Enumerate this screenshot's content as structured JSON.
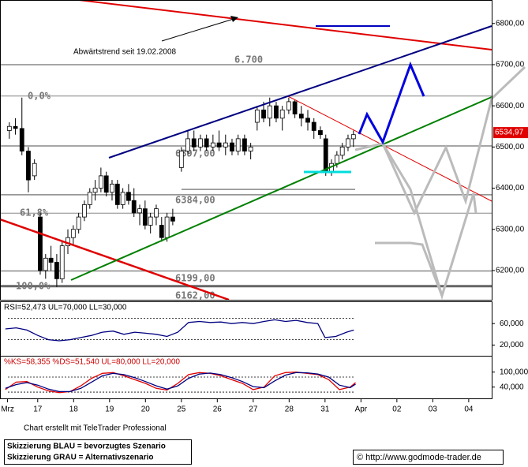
{
  "chart_data": [
    {
      "type": "candlestick",
      "annotation": "Abwärtstrend seit 19.02.2008",
      "xlim": [
        -1.05,
        12.64
      ],
      "xticks": [
        {
          "value": -0.84,
          "label": "Mrz"
        },
        {
          "value": 0,
          "label": "17"
        },
        {
          "value": 1,
          "label": "18"
        },
        {
          "value": 2,
          "label": "19"
        },
        {
          "value": 3,
          "label": "20"
        },
        {
          "value": 4,
          "label": "25"
        },
        {
          "value": 5,
          "label": "26"
        },
        {
          "value": 6,
          "label": "27"
        },
        {
          "value": 7,
          "label": "28"
        },
        {
          "value": 8,
          "label": "31"
        },
        {
          "value": 9,
          "label": "Apr"
        },
        {
          "value": 10,
          "label": "02"
        },
        {
          "value": 11,
          "label": "03"
        },
        {
          "value": 12,
          "label": "04"
        }
      ],
      "ylim": [
        6129,
        6857
      ],
      "yticks": [
        {
          "value": 6800,
          "label": "6800,00"
        },
        {
          "value": 6700,
          "label": "6700,00"
        },
        {
          "value": 6600,
          "label": "6600,00"
        },
        {
          "value": 6500,
          "label": "6500,00"
        },
        {
          "value": 6400,
          "label": "6400,00"
        },
        {
          "value": 6300,
          "label": "6300,00"
        },
        {
          "value": 6200,
          "label": "6200,00"
        }
      ],
      "last_price": {
        "value": 6534.97,
        "label": "6534,97"
      },
      "levels": [
        {
          "value": 6700,
          "label": "6.700"
        },
        {
          "value": 6624,
          "label": "0,0%"
        },
        {
          "value": 6397,
          "label": "6397,00"
        },
        {
          "value": 6384,
          "label": "6384,00"
        },
        {
          "value": 6339,
          "label": "61,8%"
        },
        {
          "value": 6199,
          "label": "6199,00"
        },
        {
          "value": 6162,
          "label": "6162,00"
        },
        {
          "value": 6158,
          "label": "100,0%"
        }
      ],
      "x": [
        -0.79,
        -0.62,
        -0.44,
        -0.26,
        -0.09,
        0.07,
        0.22,
        0.37,
        0.53,
        0.68,
        0.84,
        0.99,
        1.14,
        1.3,
        1.45,
        1.6,
        1.76,
        1.91,
        2.07,
        2.22,
        2.37,
        2.53,
        2.68,
        2.84,
        2.99,
        3.14,
        3.3,
        3.45,
        3.6,
        3.76,
        4.0,
        4.18,
        4.35,
        4.53,
        4.7,
        4.88,
        5.05,
        5.23,
        5.41,
        5.58,
        5.76,
        5.93,
        6.11,
        6.29,
        6.46,
        6.64,
        6.81,
        6.99,
        7.16,
        7.34,
        7.52,
        7.69,
        7.87,
        8.02,
        8.18,
        8.33,
        8.48,
        8.64,
        8.79
      ],
      "open": [
        6540,
        6550,
        6545,
        6490,
        6430,
        6330,
        6200,
        6230,
        6220,
        6180,
        6260,
        6280,
        6300,
        6330,
        6360,
        6390,
        6400,
        6430,
        6390,
        6410,
        6360,
        6390,
        6370,
        6340,
        6350,
        6310,
        6330,
        6310,
        6280,
        6330,
        6450,
        6490,
        6520,
        6500,
        6520,
        6500,
        6510,
        6500,
        6510,
        6490,
        6520,
        6490,
        6560,
        6590,
        6570,
        6600,
        6570,
        6590,
        6610,
        6580,
        6570,
        6560,
        6540,
        6520,
        6440,
        6460,
        6480,
        6500,
        6520
      ],
      "high": [
        6560,
        6570,
        6620,
        6500,
        6470,
        6340,
        6240,
        6260,
        6240,
        6270,
        6300,
        6310,
        6340,
        6370,
        6400,
        6420,
        6450,
        6440,
        6420,
        6420,
        6400,
        6410,
        6400,
        6360,
        6370,
        6340,
        6360,
        6330,
        6340,
        6350,
        6500,
        6540,
        6540,
        6530,
        6530,
        6530,
        6540,
        6530,
        6520,
        6530,
        6530,
        6510,
        6600,
        6610,
        6620,
        6610,
        6600,
        6620,
        6615,
        6600,
        6590,
        6570,
        6550,
        6530,
        6470,
        6490,
        6510,
        6530,
        6540
      ],
      "low": [
        6520,
        6530,
        6480,
        6390,
        6420,
        6190,
        6180,
        6200,
        6160,
        6170,
        6240,
        6260,
        6290,
        6320,
        6350,
        6370,
        6390,
        6380,
        6370,
        6350,
        6350,
        6360,
        6330,
        6310,
        6300,
        6290,
        6310,
        6270,
        6270,
        6310,
        6440,
        6480,
        6490,
        6490,
        6490,
        6490,
        6490,
        6480,
        6480,
        6480,
        6480,
        6470,
        6540,
        6560,
        6550,
        6560,
        6540,
        6580,
        6570,
        6550,
        6540,
        6520,
        6520,
        6430,
        6430,
        6450,
        6470,
        6490,
        6500
      ],
      "close": [
        6550,
        6545,
        6490,
        6420,
        6460,
        6200,
        6230,
        6220,
        6180,
        6260,
        6280,
        6300,
        6330,
        6360,
        6390,
        6400,
        6430,
        6390,
        6410,
        6360,
        6390,
        6370,
        6340,
        6350,
        6310,
        6330,
        6350,
        6280,
        6330,
        6320,
        6490,
        6520,
        6500,
        6520,
        6500,
        6510,
        6500,
        6510,
        6490,
        6520,
        6490,
        6500,
        6590,
        6570,
        6600,
        6570,
        6590,
        6610,
        6580,
        6570,
        6560,
        6540,
        6530,
        6440,
        6460,
        6480,
        6500,
        6520,
        6530
      ]
    },
    {
      "type": "line",
      "title": "RSI=52,473 UL=70,000 LL=30,000",
      "xlim": [
        -1.05,
        12.64
      ],
      "ylim": [
        0,
        100
      ],
      "yticks": [
        {
          "value": 60,
          "label": "60,000"
        },
        {
          "value": 20,
          "label": "20,000"
        }
      ],
      "bands": [
        70,
        30
      ],
      "series": [
        {
          "color": "#000080",
          "x": [
            -0.9,
            -0.6,
            -0.3,
            0,
            0.3,
            0.6,
            0.9,
            1.2,
            1.5,
            1.8,
            2.1,
            2.4,
            2.7,
            3.0,
            3.3,
            3.6,
            3.9,
            4.2,
            4.5,
            4.8,
            5.1,
            5.4,
            5.7,
            6.0,
            6.3,
            6.6,
            6.9,
            7.2,
            7.5,
            7.8,
            8.0,
            8.3,
            8.6,
            8.8
          ],
          "values": [
            50,
            52,
            48,
            38,
            30,
            28,
            30,
            34,
            38,
            44,
            46,
            40,
            44,
            42,
            40,
            36,
            44,
            62,
            64,
            62,
            63,
            60,
            62,
            60,
            64,
            67,
            64,
            66,
            62,
            60,
            34,
            36,
            44,
            48
          ]
        }
      ]
    },
    {
      "type": "line",
      "title": "%KS=58,355 %DS=51,540 UL=80,000 LL=20,000",
      "xlim": [
        -1.05,
        12.64
      ],
      "ylim": [
        -5,
        162
      ],
      "yticks": [
        {
          "value": 100,
          "label": "100,000"
        },
        {
          "value": 40,
          "label": "40,000"
        }
      ],
      "bands": [
        80,
        20
      ],
      "series": [
        {
          "color": "#e00000",
          "x": [
            -0.9,
            -0.6,
            -0.3,
            0,
            0.3,
            0.6,
            0.9,
            1.2,
            1.5,
            1.8,
            2.1,
            2.4,
            2.7,
            3.0,
            3.3,
            3.6,
            3.9,
            4.2,
            4.5,
            4.8,
            5.1,
            5.4,
            5.7,
            6.0,
            6.3,
            6.6,
            6.9,
            7.2,
            7.5,
            7.8,
            8.1,
            8.4,
            8.7,
            8.85
          ],
          "values": [
            30,
            60,
            62,
            40,
            25,
            18,
            22,
            45,
            75,
            95,
            98,
            85,
            70,
            55,
            35,
            28,
            55,
            90,
            98,
            95,
            85,
            70,
            55,
            30,
            40,
            85,
            98,
            100,
            95,
            90,
            70,
            30,
            40,
            58
          ]
        },
        {
          "color": "#000080",
          "x": [
            -0.9,
            -0.6,
            -0.3,
            0,
            0.3,
            0.6,
            0.9,
            1.2,
            1.5,
            1.8,
            2.1,
            2.4,
            2.7,
            3.0,
            3.3,
            3.6,
            3.9,
            4.2,
            4.5,
            4.8,
            5.1,
            5.4,
            5.7,
            6.0,
            6.3,
            6.6,
            6.9,
            7.2,
            7.5,
            7.8,
            8.1,
            8.4,
            8.7,
            8.85
          ],
          "values": [
            35,
            50,
            58,
            48,
            32,
            22,
            22,
            35,
            60,
            85,
            95,
            90,
            78,
            62,
            45,
            32,
            45,
            75,
            92,
            96,
            90,
            78,
            62,
            42,
            38,
            65,
            88,
            98,
            97,
            92,
            80,
            48,
            38,
            52
          ]
        }
      ]
    }
  ],
  "footer": {
    "credit": "Chart erstellt mit TeleTrader Professional",
    "legend": [
      "Skizzierung BLAU = bevorzugtes Szenario",
      "Skizzierung GRAU = Alternativszenario"
    ],
    "copyright": "© http://www.godmode-trader.de"
  }
}
